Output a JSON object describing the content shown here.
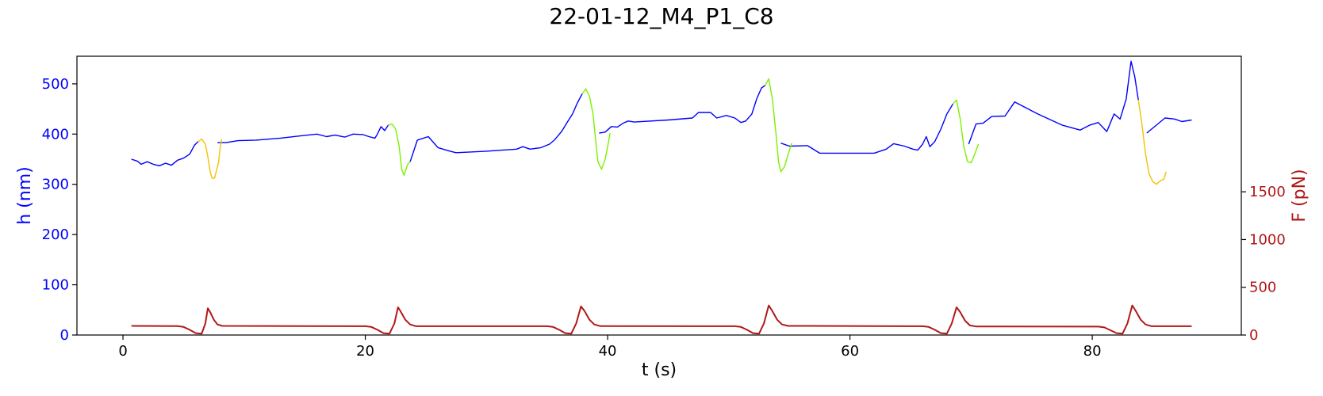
{
  "chart_data": {
    "type": "line",
    "title": "22-01-12_M4_P1_C8",
    "xlabel": "t (s)",
    "ylabel_left": "h (nm)",
    "ylabel_right": "F (pN)",
    "xlim": [
      -3.8,
      92.3
    ],
    "ylim_left": [
      0,
      555
    ],
    "ylim_right": [
      0,
      2920
    ],
    "x_ticks": [
      0,
      20,
      40,
      60,
      80
    ],
    "y_ticks_left": [
      0,
      100,
      200,
      300,
      400,
      500
    ],
    "y_ticks_right": [
      0,
      500,
      1000,
      1500
    ],
    "colors": {
      "h_baseline": "#0000ff",
      "h_segment_yellow": "#f2c200",
      "h_segment_green": "#7cf000",
      "force": "#b01818",
      "left_axis_text": "#0000ff",
      "right_axis_text": "#b01818"
    },
    "series": [
      {
        "color_key": "h_baseline",
        "axis": "left",
        "segments": [
          [
            [
              0.7,
              350
            ],
            [
              1.2,
              346
            ],
            [
              1.5,
              340
            ],
            [
              2.0,
              345
            ],
            [
              2.5,
              340
            ],
            [
              3.0,
              337
            ],
            [
              3.5,
              342
            ],
            [
              4.0,
              338
            ],
            [
              4.5,
              348
            ],
            [
              5.0,
              352
            ],
            [
              5.5,
              360
            ],
            [
              5.9,
              378
            ],
            [
              6.2,
              385
            ]
          ],
          [
            [
              7.8,
              383
            ],
            [
              8.5,
              383
            ],
            [
              9.5,
              387
            ],
            [
              11,
              388
            ],
            [
              13,
              392
            ],
            [
              14.5,
              396
            ],
            [
              16,
              400
            ],
            [
              16.8,
              395
            ],
            [
              17.5,
              398
            ],
            [
              18.3,
              394
            ],
            [
              19,
              400
            ],
            [
              19.8,
              399
            ],
            [
              20.3,
              395
            ],
            [
              20.8,
              392
            ],
            [
              21.0,
              400
            ],
            [
              21.3,
              415
            ],
            [
              21.6,
              407
            ],
            [
              21.9,
              418
            ]
          ],
          [
            [
              23.7,
              345
            ],
            [
              24.3,
              388
            ],
            [
              25.2,
              395
            ],
            [
              26.0,
              373
            ],
            [
              27.0,
              366
            ],
            [
              27.5,
              363
            ],
            [
              30,
              366
            ],
            [
              32.5,
              370
            ],
            [
              33.0,
              375
            ],
            [
              33.6,
              370
            ],
            [
              34.5,
              373
            ],
            [
              35.2,
              380
            ],
            [
              35.6,
              388
            ],
            [
              36.2,
              405
            ],
            [
              36.7,
              425
            ],
            [
              37.1,
              440
            ],
            [
              37.5,
              462
            ],
            [
              37.9,
              480
            ]
          ],
          [
            [
              39.3,
              402
            ],
            [
              39.8,
              404
            ],
            [
              40.3,
              415
            ],
            [
              40.8,
              414
            ],
            [
              41.3,
              422
            ],
            [
              41.7,
              426
            ],
            [
              42.2,
              424
            ],
            [
              45,
              428
            ],
            [
              47,
              432
            ],
            [
              47.5,
              443
            ],
            [
              48.5,
              443
            ],
            [
              49,
              432
            ],
            [
              49.8,
              437
            ],
            [
              50.5,
              432
            ],
            [
              51.0,
              423
            ],
            [
              51.4,
              426
            ],
            [
              51.9,
              440
            ],
            [
              52.3,
              470
            ],
            [
              52.7,
              492
            ],
            [
              53.0,
              497
            ]
          ],
          [
            [
              54.3,
              382
            ],
            [
              55.0,
              376
            ],
            [
              56.5,
              377
            ],
            [
              57.5,
              362
            ],
            [
              60,
              362
            ],
            [
              62,
              362
            ],
            [
              63.0,
              370
            ],
            [
              63.6,
              381
            ],
            [
              64.5,
              376
            ],
            [
              65.2,
              370
            ],
            [
              65.6,
              368
            ],
            [
              66.0,
              380
            ],
            [
              66.3,
              395
            ],
            [
              66.6,
              375
            ],
            [
              67.0,
              385
            ],
            [
              67.5,
              410
            ],
            [
              68.0,
              440
            ],
            [
              68.5,
              460
            ]
          ],
          [
            [
              69.8,
              380
            ],
            [
              70.4,
              420
            ],
            [
              71.0,
              422
            ],
            [
              71.7,
              435
            ],
            [
              72.8,
              436
            ],
            [
              73.6,
              464
            ],
            [
              75.5,
              440
            ],
            [
              77.5,
              418
            ],
            [
              79,
              408
            ],
            [
              79.8,
              418
            ],
            [
              80.5,
              423
            ],
            [
              81.2,
              405
            ],
            [
              81.8,
              440
            ],
            [
              82.3,
              430
            ],
            [
              82.8,
              470
            ],
            [
              83.2,
              545
            ],
            [
              83.5,
              515
            ],
            [
              83.8,
              468
            ]
          ],
          [
            [
              84.5,
              402
            ],
            [
              86.0,
              432
            ],
            [
              86.8,
              430
            ],
            [
              87.4,
              425
            ],
            [
              88.2,
              428
            ]
          ]
        ]
      },
      {
        "color_key": "h_segment_yellow",
        "axis": "left",
        "segments": [
          [
            [
              6.2,
              385
            ],
            [
              6.5,
              390
            ],
            [
              6.8,
              380
            ],
            [
              7.0,
              355
            ],
            [
              7.2,
              325
            ],
            [
              7.35,
              312
            ],
            [
              7.55,
              312
            ],
            [
              7.75,
              330
            ],
            [
              7.9,
              345
            ],
            [
              8.0,
              370
            ],
            [
              8.15,
              390
            ]
          ],
          [
            [
              83.8,
              468
            ],
            [
              84.1,
              420
            ],
            [
              84.4,
              360
            ],
            [
              84.7,
              320
            ],
            [
              85.0,
              305
            ],
            [
              85.3,
              300
            ],
            [
              85.6,
              307
            ],
            [
              85.9,
              310
            ],
            [
              86.1,
              325
            ]
          ]
        ]
      },
      {
        "color_key": "h_segment_green",
        "axis": "left",
        "segments": [
          [
            [
              21.9,
              418
            ],
            [
              22.2,
              420
            ],
            [
              22.5,
              410
            ],
            [
              22.8,
              375
            ],
            [
              23.0,
              330
            ],
            [
              23.2,
              318
            ],
            [
              23.5,
              340
            ],
            [
              23.7,
              345
            ]
          ],
          [
            [
              37.9,
              480
            ],
            [
              38.2,
              490
            ],
            [
              38.5,
              475
            ],
            [
              38.8,
              440
            ],
            [
              39.0,
              390
            ],
            [
              39.2,
              345
            ],
            [
              39.5,
              330
            ],
            [
              39.8,
              350
            ],
            [
              40.0,
              375
            ],
            [
              40.2,
              402
            ]
          ],
          [
            [
              53.0,
              497
            ],
            [
              53.3,
              510
            ],
            [
              53.6,
              470
            ],
            [
              53.9,
              400
            ],
            [
              54.1,
              345
            ],
            [
              54.3,
              325
            ],
            [
              54.6,
              335
            ],
            [
              54.9,
              360
            ],
            [
              55.2,
              382
            ]
          ],
          [
            [
              68.5,
              460
            ],
            [
              68.8,
              468
            ],
            [
              69.1,
              430
            ],
            [
              69.4,
              375
            ],
            [
              69.7,
              345
            ],
            [
              70.0,
              343
            ],
            [
              70.3,
              360
            ],
            [
              70.6,
              380
            ]
          ]
        ]
      },
      {
        "color_key": "force",
        "axis": "right",
        "segments": [
          [
            [
              0.7,
              95
            ],
            [
              4.5,
              93
            ],
            [
              5.0,
              85
            ],
            [
              5.5,
              55
            ],
            [
              6.0,
              20
            ],
            [
              6.5,
              15
            ],
            [
              6.8,
              120
            ],
            [
              7.0,
              280
            ],
            [
              7.2,
              240
            ],
            [
              7.5,
              160
            ],
            [
              7.8,
              110
            ],
            [
              8.2,
              95
            ],
            [
              20,
              92
            ],
            [
              20.5,
              85
            ],
            [
              21.0,
              55
            ],
            [
              21.5,
              20
            ],
            [
              22.0,
              15
            ],
            [
              22.4,
              120
            ],
            [
              22.7,
              290
            ],
            [
              22.9,
              250
            ],
            [
              23.3,
              160
            ],
            [
              23.7,
              110
            ],
            [
              24.2,
              92
            ],
            [
              35,
              92
            ],
            [
              35.5,
              85
            ],
            [
              36.0,
              55
            ],
            [
              36.5,
              20
            ],
            [
              37.0,
              15
            ],
            [
              37.4,
              120
            ],
            [
              37.8,
              300
            ],
            [
              38.1,
              250
            ],
            [
              38.5,
              160
            ],
            [
              38.9,
              110
            ],
            [
              39.4,
              93
            ],
            [
              50.5,
              92
            ],
            [
              51.0,
              85
            ],
            [
              51.5,
              55
            ],
            [
              52.0,
              20
            ],
            [
              52.5,
              15
            ],
            [
              52.9,
              120
            ],
            [
              53.3,
              310
            ],
            [
              53.6,
              250
            ],
            [
              54.0,
              160
            ],
            [
              54.4,
              110
            ],
            [
              54.9,
              95
            ],
            [
              66.0,
              92
            ],
            [
              66.5,
              85
            ],
            [
              67.0,
              55
            ],
            [
              67.5,
              20
            ],
            [
              68.0,
              15
            ],
            [
              68.4,
              120
            ],
            [
              68.8,
              290
            ],
            [
              69.1,
              240
            ],
            [
              69.5,
              150
            ],
            [
              69.9,
              100
            ],
            [
              70.4,
              90
            ],
            [
              80.5,
              88
            ],
            [
              81.0,
              80
            ],
            [
              81.5,
              50
            ],
            [
              82.0,
              20
            ],
            [
              82.5,
              15
            ],
            [
              82.9,
              120
            ],
            [
              83.3,
              310
            ],
            [
              83.6,
              250
            ],
            [
              84.0,
              160
            ],
            [
              84.4,
              110
            ],
            [
              84.9,
              92
            ],
            [
              88.2,
              92
            ]
          ]
        ]
      }
    ]
  }
}
